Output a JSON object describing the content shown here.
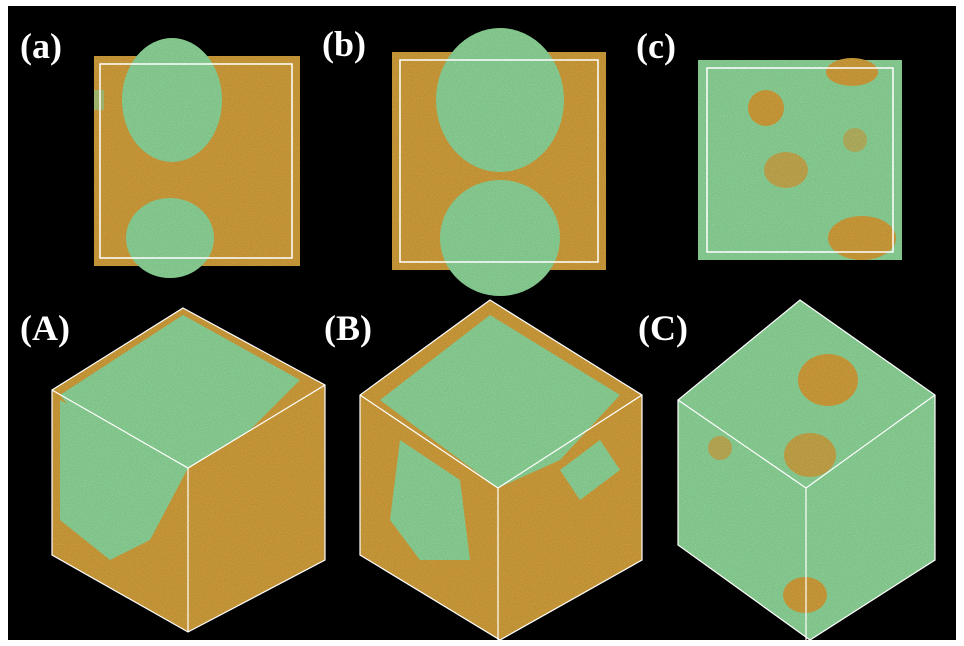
{
  "panels": [
    {
      "label": "(a)"
    },
    {
      "label": "(b)"
    },
    {
      "label": "(c)"
    },
    {
      "label": "(A)"
    },
    {
      "label": "(B)"
    },
    {
      "label": "(C)"
    }
  ]
}
